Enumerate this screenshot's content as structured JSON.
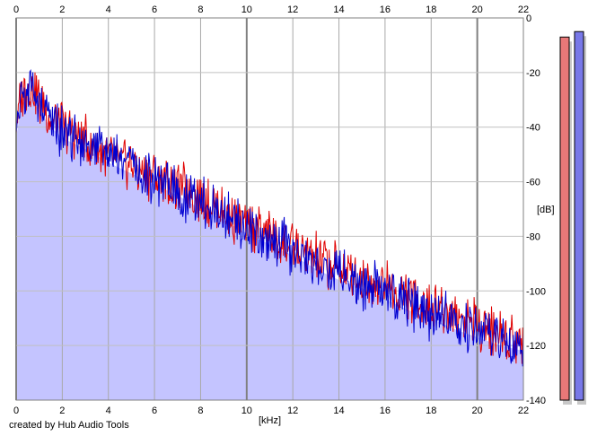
{
  "chart_data": {
    "type": "area",
    "title": "",
    "xlabel": "[kHz]",
    "ylabel": "[dB]",
    "xlim": [
      0,
      22
    ],
    "ylim": [
      -140,
      0
    ],
    "x_ticks": [
      0,
      2,
      4,
      6,
      8,
      10,
      12,
      14,
      16,
      18,
      20,
      22
    ],
    "y_ticks": [
      0,
      -20,
      -40,
      -60,
      -80,
      -100,
      -120,
      -140
    ],
    "grid": true,
    "legend": "none",
    "series": [
      {
        "color": "#e00000",
        "x": [
          0,
          0.2,
          0.4,
          0.6,
          1,
          1.5,
          2,
          3,
          4,
          5,
          6,
          7,
          8,
          9,
          10,
          11,
          12,
          13,
          14,
          15,
          16,
          17,
          18,
          19,
          20,
          21,
          22
        ],
        "values": [
          -40,
          -30,
          -27,
          -25,
          -30,
          -37,
          -40,
          -45,
          -50,
          -54,
          -58,
          -62,
          -67,
          -71,
          -76,
          -80,
          -84,
          -88,
          -92,
          -95,
          -98,
          -102,
          -105,
          -109,
          -112,
          -116,
          -118
        ]
      },
      {
        "color": "#0000d0",
        "x": [
          0,
          0.2,
          0.4,
          0.6,
          1,
          1.5,
          2,
          3,
          4,
          5,
          6,
          7,
          8,
          9,
          10,
          11,
          12,
          13,
          14,
          15,
          16,
          17,
          18,
          19,
          20,
          21,
          22
        ],
        "values": [
          -42,
          -31,
          -28,
          -27,
          -32,
          -38,
          -42,
          -46,
          -51,
          -55,
          -59,
          -63,
          -68,
          -72,
          -77,
          -81,
          -85,
          -90,
          -94,
          -97,
          -101,
          -105,
          -108,
          -112,
          -115,
          -118,
          -120
        ]
      }
    ],
    "fill_color": "#c4c4ff",
    "level_meters": [
      {
        "color": "#e87878",
        "level_db": -7
      },
      {
        "color": "#7878e8",
        "level_db": -5
      }
    ]
  },
  "footer": {
    "credit": "created by Hub Audio Tools"
  }
}
